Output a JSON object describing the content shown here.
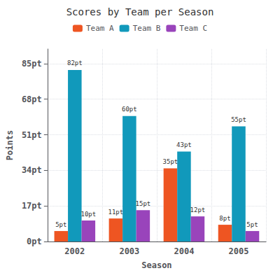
{
  "chart_data": {
    "type": "bar",
    "title": "Scores by Team per Season",
    "xlabel": "Season",
    "ylabel": "Points",
    "categories": [
      "2002",
      "2003",
      "2004",
      "2005"
    ],
    "series": [
      {
        "name": "Team A",
        "color": "#EE5522",
        "values": [
          5,
          11,
          35,
          8
        ],
        "value_labels": [
          "5pt",
          "11pt",
          "35pt",
          "8pt"
        ]
      },
      {
        "name": "Team B",
        "color": "#1199BB",
        "values": [
          82,
          60,
          43,
          55
        ],
        "value_labels": [
          "82pt",
          "60pt",
          "43pt",
          "55pt"
        ]
      },
      {
        "name": "Team C",
        "color": "#9944BB",
        "values": [
          10,
          15,
          12,
          5
        ],
        "value_labels": [
          "10pt",
          "15pt",
          "12pt",
          "5pt"
        ]
      }
    ],
    "ylim": [
      0,
      92
    ],
    "yticks": [
      {
        "value": 0,
        "label": "0pt"
      },
      {
        "value": 17,
        "label": "17pt"
      },
      {
        "value": 34,
        "label": "34pt"
      },
      {
        "value": 51,
        "label": "51pt"
      },
      {
        "value": 68,
        "label": "68pt"
      },
      {
        "value": 85,
        "label": "85pt"
      }
    ],
    "grid": true,
    "legend": "top",
    "data_labels": true
  }
}
